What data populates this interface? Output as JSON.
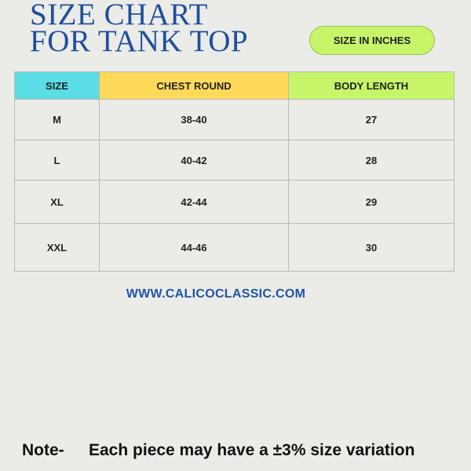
{
  "title_lines": [
    "SIZE CHART",
    "FOR TANK TOP"
  ],
  "unit_badge": "SIZE IN INCHES",
  "table": {
    "headers": [
      "SIZE",
      "CHEST ROUND",
      "BODY LENGTH"
    ],
    "header_colors": [
      "#5bdde6",
      "#ffd95a",
      "#c6f56a"
    ],
    "rows": [
      [
        "M",
        "38-40",
        "27"
      ],
      [
        "L",
        "40-42",
        "28"
      ],
      [
        "XL",
        "42-44",
        "29"
      ],
      [
        "XXL",
        "44-46",
        "30"
      ]
    ]
  },
  "website": "WWW.CALICOCLASSIC.COM",
  "note": {
    "label": "Note-",
    "text": "Each piece may have a ±3% size variation"
  }
}
